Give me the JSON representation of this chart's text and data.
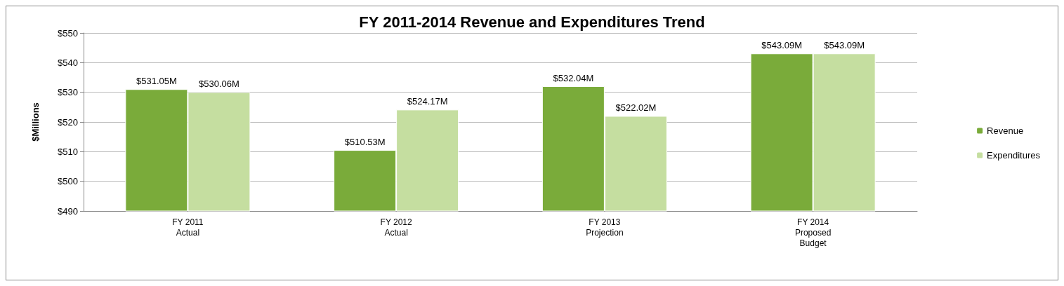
{
  "chart_data": {
    "type": "bar",
    "title": "FY 2011-2014 Revenue and Expenditures Trend",
    "ylabel": "$Millions",
    "categories": [
      "FY 2011\nActual",
      "FY 2012\nActual",
      "FY 2013\nProjection",
      "FY 2014\nProposed\nBudget"
    ],
    "series": [
      {
        "name": "Revenue",
        "color": "#7aab3a",
        "values": [
          531.05,
          510.53,
          532.04,
          543.09
        ],
        "value_labels": [
          "$531.05M",
          "$510.53M",
          "$532.04M",
          "$543.09M"
        ]
      },
      {
        "name": "Expenditures",
        "color": "#c5dea0",
        "values": [
          530.06,
          524.17,
          522.02,
          543.09
        ],
        "value_labels": [
          "$530.06M",
          "$524.17M",
          "$522.02M",
          "$543.09M"
        ]
      }
    ],
    "ylim": [
      490,
      550
    ],
    "yticks": [
      {
        "value": 490,
        "label": "$490"
      },
      {
        "value": 500,
        "label": "$500"
      },
      {
        "value": 510,
        "label": "$510"
      },
      {
        "value": 520,
        "label": "$520"
      },
      {
        "value": 530,
        "label": "$530"
      },
      {
        "value": 540,
        "label": "$540"
      },
      {
        "value": 550,
        "label": "$550"
      }
    ],
    "grid": "y",
    "legend": "right"
  }
}
